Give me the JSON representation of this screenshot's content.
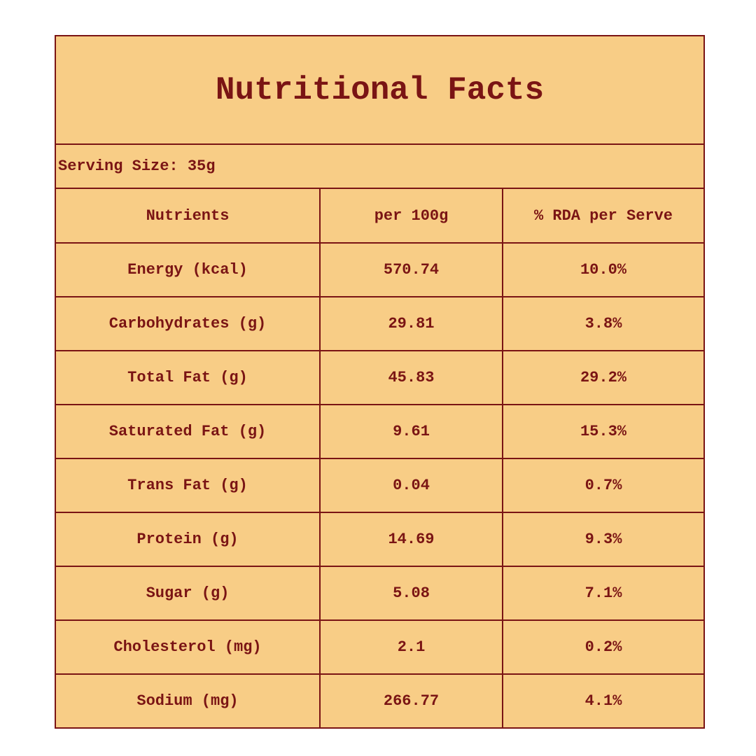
{
  "title": "Nutritional Facts",
  "serving_size": "Serving Size: 35g",
  "table": {
    "headers": [
      "Nutrients",
      "per 100g",
      "% RDA per Serve"
    ],
    "rows": [
      [
        "Energy (kcal)",
        "570.74",
        "10.0%"
      ],
      [
        "Carbohydrates (g)",
        "29.81",
        "3.8%"
      ],
      [
        "Total Fat (g)",
        "45.83",
        "29.2%"
      ],
      [
        "Saturated Fat (g)",
        "9.61",
        "15.3%"
      ],
      [
        "Trans Fat (g)",
        "0.04",
        "0.7%"
      ],
      [
        "Protein (g)",
        "14.69",
        "9.3%"
      ],
      [
        "Sugar (g)",
        "5.08",
        "7.1%"
      ],
      [
        "Cholesterol (mg)",
        "2.1",
        "0.2%"
      ],
      [
        "Sodium (mg)",
        "266.77",
        "4.1%"
      ]
    ]
  }
}
